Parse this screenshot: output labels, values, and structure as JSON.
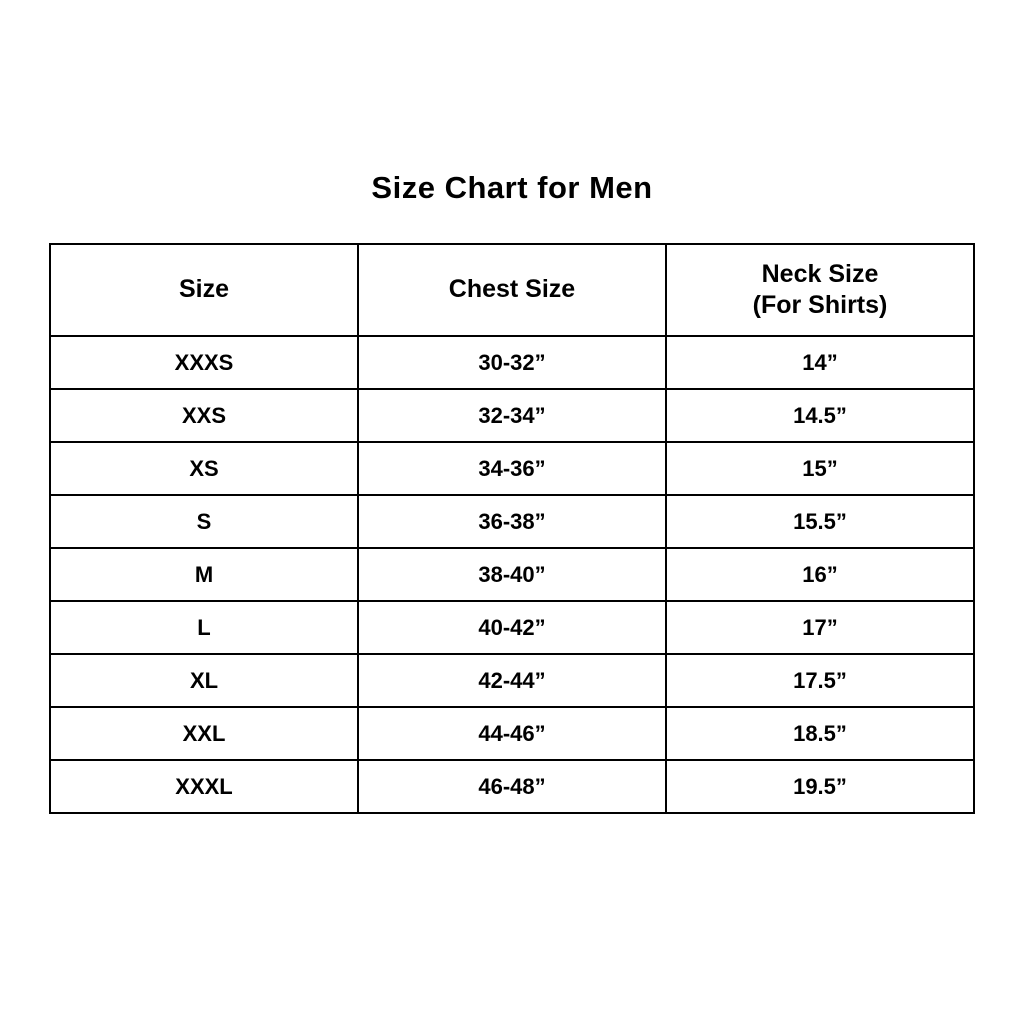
{
  "title": "Size Chart for Men",
  "table": {
    "headers": {
      "size": "Size",
      "chest": "Chest Size",
      "neck_line1": "Neck Size",
      "neck_line2": "(For Shirts)"
    },
    "rows": [
      {
        "size": "XXXS",
        "chest": "30-32”",
        "neck": "14”"
      },
      {
        "size": "XXS",
        "chest": "32-34”",
        "neck": "14.5”"
      },
      {
        "size": "XS",
        "chest": "34-36”",
        "neck": "15”"
      },
      {
        "size": "S",
        "chest": "36-38”",
        "neck": "15.5”"
      },
      {
        "size": "M",
        "chest": "38-40”",
        "neck": "16”"
      },
      {
        "size": "L",
        "chest": "40-42”",
        "neck": "17”"
      },
      {
        "size": "XL",
        "chest": "42-44”",
        "neck": "17.5”"
      },
      {
        "size": "XXL",
        "chest": "44-46”",
        "neck": "18.5”"
      },
      {
        "size": "XXXL",
        "chest": "46-48”",
        "neck": "19.5”"
      }
    ]
  },
  "chart_data": {
    "type": "table",
    "title": "Size Chart for Men",
    "columns": [
      "Size",
      "Chest Size",
      "Neck Size (For Shirts)"
    ],
    "rows": [
      [
        "XXXS",
        "30-32”",
        "14”"
      ],
      [
        "XXS",
        "32-34”",
        "14.5”"
      ],
      [
        "XS",
        "34-36”",
        "15”"
      ],
      [
        "S",
        "36-38”",
        "15.5”"
      ],
      [
        "M",
        "38-40”",
        "16”"
      ],
      [
        "L",
        "40-42”",
        "17”"
      ],
      [
        "XL",
        "42-44”",
        "17.5”"
      ],
      [
        "XXL",
        "44-46”",
        "18.5”"
      ],
      [
        "XXXL",
        "46-48”",
        "19.5”"
      ]
    ]
  }
}
